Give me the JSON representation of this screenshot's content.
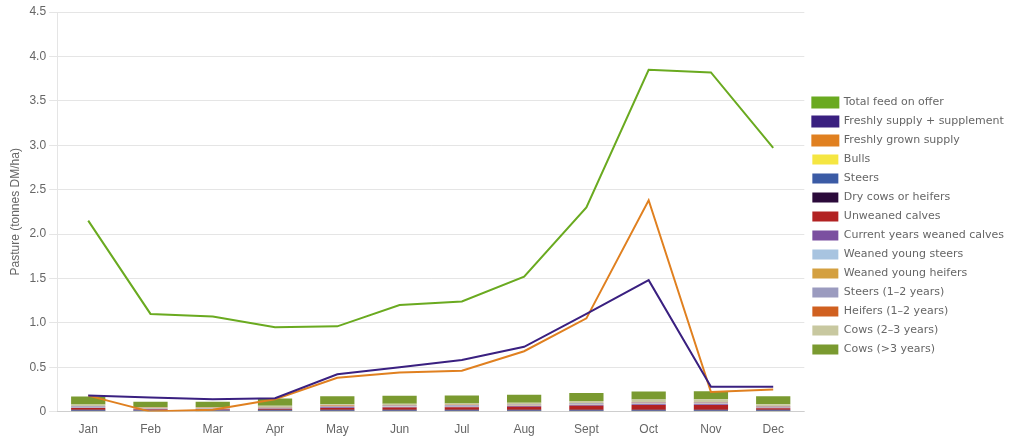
{
  "chart_data": {
    "type": "bar",
    "stacked": true,
    "categories": [
      "Jan",
      "Feb",
      "Mar",
      "Apr",
      "May",
      "Jun",
      "Jul",
      "Aug",
      "Sept",
      "Oct",
      "Nov",
      "Dec"
    ],
    "ylabel": "Pasture (tonnes DM/ha)",
    "ylim": [
      0,
      4.5
    ],
    "yticks": [
      0,
      0.5,
      {
        "value": 1,
        "label": "1.0"
      },
      1.5,
      {
        "value": 2,
        "label": "2.0"
      },
      2.5,
      {
        "value": 3,
        "label": "3.0"
      },
      3.5,
      {
        "value": 4,
        "label": "4.0"
      },
      4.5
    ],
    "grid": true,
    "legend": "right",
    "series": [
      {
        "name": "Bulls",
        "type": "bar",
        "color": "#f5e642",
        "values": [
          0.004,
          0.004,
          0.004,
          0.004,
          0.004,
          0.004,
          0.004,
          0.004,
          0.004,
          0.004,
          0.004,
          0.004
        ]
      },
      {
        "name": "Steers",
        "type": "bar",
        "color": "#3b5ba5",
        "values": [
          0.008,
          0.008,
          0.008,
          0.008,
          0.008,
          0.008,
          0.008,
          0.008,
          0.008,
          0.008,
          0.008,
          0.008
        ]
      },
      {
        "name": "Dry cows or heifers",
        "type": "bar",
        "color": "#2b0a3a",
        "values": [
          0.01,
          0.004,
          0.004,
          0.008,
          0.008,
          0.008,
          0.008,
          0.008,
          0.008,
          0.008,
          0.008,
          0.008
        ]
      },
      {
        "name": "Unweaned calves",
        "type": "bar",
        "color": "#b22222",
        "values": [
          0.018,
          0.008,
          0.008,
          0.012,
          0.02,
          0.025,
          0.028,
          0.035,
          0.045,
          0.055,
          0.055,
          0.018
        ]
      },
      {
        "name": "Current years weaned calves",
        "type": "bar",
        "color": "#7b4fa0",
        "values": [
          0.004,
          0.004,
          0.004,
          0.004,
          0.008,
          0.008,
          0.008,
          0.008,
          0.008,
          0.008,
          0.008,
          0.004
        ]
      },
      {
        "name": "Weaned young steers",
        "type": "bar",
        "color": "#a8c4e0",
        "values": [
          0.004,
          0.004,
          0.004,
          0.004,
          0.004,
          0.004,
          0.004,
          0.004,
          0.004,
          0.004,
          0.004,
          0.004
        ]
      },
      {
        "name": "Weaned young heifers",
        "type": "bar",
        "color": "#d4a040",
        "values": [
          0.004,
          0.004,
          0.004,
          0.004,
          0.004,
          0.004,
          0.004,
          0.004,
          0.004,
          0.004,
          0.004,
          0.004
        ]
      },
      {
        "name": "Steers (1–2 years)",
        "type": "bar",
        "color": "#9b9bbf",
        "values": [
          0.008,
          0.004,
          0.004,
          0.004,
          0.008,
          0.008,
          0.008,
          0.008,
          0.012,
          0.012,
          0.012,
          0.008
        ]
      },
      {
        "name": "Heifers (1–2 years)",
        "type": "bar",
        "color": "#d06020",
        "values": [
          0.004,
          0.004,
          0.004,
          0.004,
          0.004,
          0.004,
          0.004,
          0.004,
          0.004,
          0.004,
          0.004,
          0.004
        ]
      },
      {
        "name": "Cows (2–3 years)",
        "type": "bar",
        "color": "#c8c8a0",
        "values": [
          0.015,
          0.008,
          0.008,
          0.015,
          0.015,
          0.015,
          0.015,
          0.018,
          0.022,
          0.028,
          0.032,
          0.02
        ]
      },
      {
        "name": "Cows (>3 years)",
        "type": "bar",
        "color": "#7a9a30",
        "values": [
          0.09,
          0.06,
          0.06,
          0.08,
          0.09,
          0.09,
          0.09,
          0.09,
          0.09,
          0.09,
          0.09,
          0.09
        ]
      },
      {
        "name": "Total feed on offer",
        "type": "line",
        "color": "#6aaa20",
        "values": [
          2.15,
          1.1,
          1.07,
          0.95,
          0.96,
          1.2,
          1.24,
          1.52,
          2.3,
          3.85,
          3.82,
          2.97
        ]
      },
      {
        "name": "Freshly supply + supplement",
        "type": "line",
        "color": "#3a2080",
        "values": [
          0.18,
          0.16,
          0.14,
          0.15,
          0.42,
          0.5,
          0.58,
          0.73,
          1.1,
          1.48,
          0.28,
          0.28
        ]
      },
      {
        "name": "Freshly grown supply",
        "type": "line",
        "color": "#e08020",
        "values": [
          0.18,
          0.0,
          0.02,
          0.14,
          0.38,
          0.44,
          0.46,
          0.68,
          1.05,
          2.38,
          0.22,
          0.25
        ]
      }
    ]
  }
}
